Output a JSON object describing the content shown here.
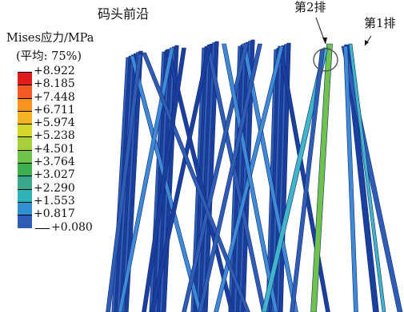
{
  "labels": {
    "wharf_edge": "码头前沿",
    "row2": "第2排",
    "row1": "第1排"
  },
  "legend": {
    "title": "Mises应力/MPa",
    "averaging": "(平均: 75%)",
    "levels": [
      {
        "value": "+8.922",
        "color": "#e31a1c"
      },
      {
        "value": "+8.185",
        "color": "#f15a24"
      },
      {
        "value": "+7.448",
        "color": "#f7931e"
      },
      {
        "value": "+6.711",
        "color": "#f5b324"
      },
      {
        "value": "+5.974",
        "color": "#d4d62a"
      },
      {
        "value": "+5.238",
        "color": "#a6cf3a"
      },
      {
        "value": "+4.501",
        "color": "#6fc24a"
      },
      {
        "value": "+3.764",
        "color": "#3fae4f"
      },
      {
        "value": "+3.027",
        "color": "#3aa98a"
      },
      {
        "value": "+2.290",
        "color": "#2fb3b7"
      },
      {
        "value": "+1.553",
        "color": "#2f8fcf"
      },
      {
        "value": "+0.817",
        "color": "#2f5db5"
      },
      {
        "value": "+0.080",
        "color": "#1f3a9e"
      }
    ]
  },
  "colors": {
    "pile_dark": "#1a3f9e",
    "pile_mid": "#2f5db5",
    "pile_light": "#3f8ad6",
    "pile_cyan": "#40b5c8",
    "pile_green": "#6fc24a"
  },
  "annotation": {
    "shape": "ellipse",
    "target": "row2-top"
  }
}
